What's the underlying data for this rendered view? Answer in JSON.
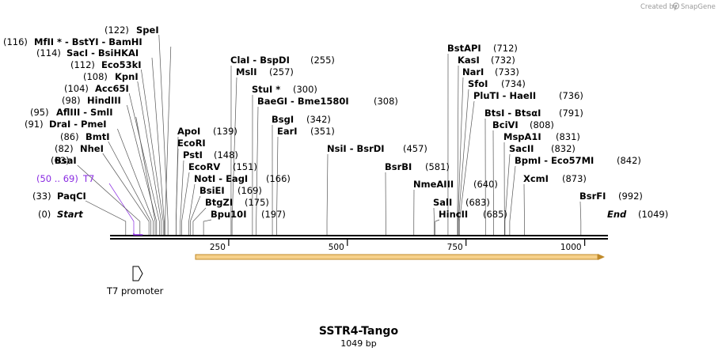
{
  "watermark": {
    "created_by": "Created by",
    "brand": "SnapGene"
  },
  "map": {
    "title": "SSTR4-Tango",
    "length": "1049 bp",
    "total_bp": 1049
  },
  "features": [
    {
      "name": "T7 promoter"
    }
  ],
  "ticks": [
    "250",
    "500",
    "750",
    "1000"
  ],
  "tick_values": [
    250,
    500,
    750,
    1000
  ],
  "sites": [
    {
      "name": "Start",
      "pos": "(0)",
      "bp": 0,
      "italic": true
    },
    {
      "name": "PaqCI",
      "pos": "(33)",
      "bp": 33
    },
    {
      "name": "T7",
      "pos": "(50 .. 69)",
      "bp": 50,
      "highlight": true
    },
    {
      "name": "BsaI",
      "pos": "(63)",
      "bp": 63
    },
    {
      "name": "NheI",
      "pos": "(82)",
      "bp": 82
    },
    {
      "name": "BmtI",
      "pos": "(86)",
      "bp": 86
    },
    {
      "name": "DraI  - PmeI",
      "pos": "(91)",
      "bp": 91
    },
    {
      "name": "AflIII  - SmlI",
      "pos": "(95)",
      "bp": 95
    },
    {
      "name": "HindIII",
      "pos": "(98)",
      "bp": 98
    },
    {
      "name": "Acc65I",
      "pos": "(104)",
      "bp": 104
    },
    {
      "name": "KpnI",
      "pos": "(108)",
      "bp": 108
    },
    {
      "name": "Eco53kI",
      "pos": "(112)",
      "bp": 112
    },
    {
      "name": "SacI  - BsiHKAI",
      "pos": "(114)",
      "bp": 114
    },
    {
      "name": "MfII *  - BstYI  - BamHI",
      "pos": "(116)",
      "bp": 116
    },
    {
      "name": "SpeI",
      "pos": "(122)",
      "bp": 122
    },
    {
      "name": "ApoI",
      "pos": "(139)",
      "bp": 139,
      "right": true
    },
    {
      "name": "EcoRI",
      "pos": "",
      "bp": 139,
      "right": true
    },
    {
      "name": "PstI",
      "pos": "(148)",
      "bp": 148,
      "right": true
    },
    {
      "name": "EcoRV",
      "pos": "(151)",
      "bp": 151,
      "right": true
    },
    {
      "name": "NotI  - EagI",
      "pos": "(166)",
      "bp": 166,
      "right": true
    },
    {
      "name": "BsiEI",
      "pos": "(169)",
      "bp": 169,
      "right": true
    },
    {
      "name": "BtgZI",
      "pos": "(175)",
      "bp": 175,
      "right": true
    },
    {
      "name": "Bpu10I",
      "pos": "(197)",
      "bp": 197,
      "right": true
    },
    {
      "name": "ClaI  - BspDI",
      "pos": "(255)",
      "bp": 255,
      "right": true
    },
    {
      "name": "MslI",
      "pos": "(257)",
      "bp": 257,
      "right": true
    },
    {
      "name": "StuI *",
      "pos": "(300)",
      "bp": 300,
      "right": true
    },
    {
      "name": "BaeGI  - Bme1580I",
      "pos": "(308)",
      "bp": 308,
      "right": true
    },
    {
      "name": "BsgI",
      "pos": "(342)",
      "bp": 342,
      "right": true
    },
    {
      "name": "EarI",
      "pos": "(351)",
      "bp": 351,
      "right": true
    },
    {
      "name": "NsiI  - BsrDI",
      "pos": "(457)",
      "bp": 457,
      "right": true
    },
    {
      "name": "BsrBI",
      "pos": "(581)",
      "bp": 581,
      "right": true
    },
    {
      "name": "NmeAIII",
      "pos": "(640)",
      "bp": 640,
      "right": true
    },
    {
      "name": "SalI",
      "pos": "(683)",
      "bp": 683,
      "right": true
    },
    {
      "name": "HincII",
      "pos": "(685)",
      "bp": 685,
      "right": true
    },
    {
      "name": "BstAPI",
      "pos": "(712)",
      "bp": 712,
      "right": true
    },
    {
      "name": "KasI",
      "pos": "(732)",
      "bp": 732,
      "right": true
    },
    {
      "name": "NarI",
      "pos": "(733)",
      "bp": 733,
      "right": true
    },
    {
      "name": "SfoI",
      "pos": "(734)",
      "bp": 734,
      "right": true
    },
    {
      "name": "PluTI  - HaeII",
      "pos": "(736)",
      "bp": 736,
      "right": true
    },
    {
      "name": "BtsI  - BtsαI",
      "pos": "(791)",
      "bp": 791,
      "right": true
    },
    {
      "name": "BciVI",
      "pos": "(808)",
      "bp": 808,
      "right": true
    },
    {
      "name": "MspA1I",
      "pos": "(831)",
      "bp": 831,
      "right": true
    },
    {
      "name": "SacII",
      "pos": "(832)",
      "bp": 832,
      "right": true
    },
    {
      "name": "BpmI  - Eco57MI",
      "pos": "(842)",
      "bp": 842,
      "right": true
    },
    {
      "name": "XcmI",
      "pos": "(873)",
      "bp": 873,
      "right": true
    },
    {
      "name": "BsrFI",
      "pos": "(992)",
      "bp": 992,
      "right": true
    },
    {
      "name": "End",
      "pos": "(1049)",
      "bp": 1049,
      "right": true,
      "italic": true
    }
  ]
}
